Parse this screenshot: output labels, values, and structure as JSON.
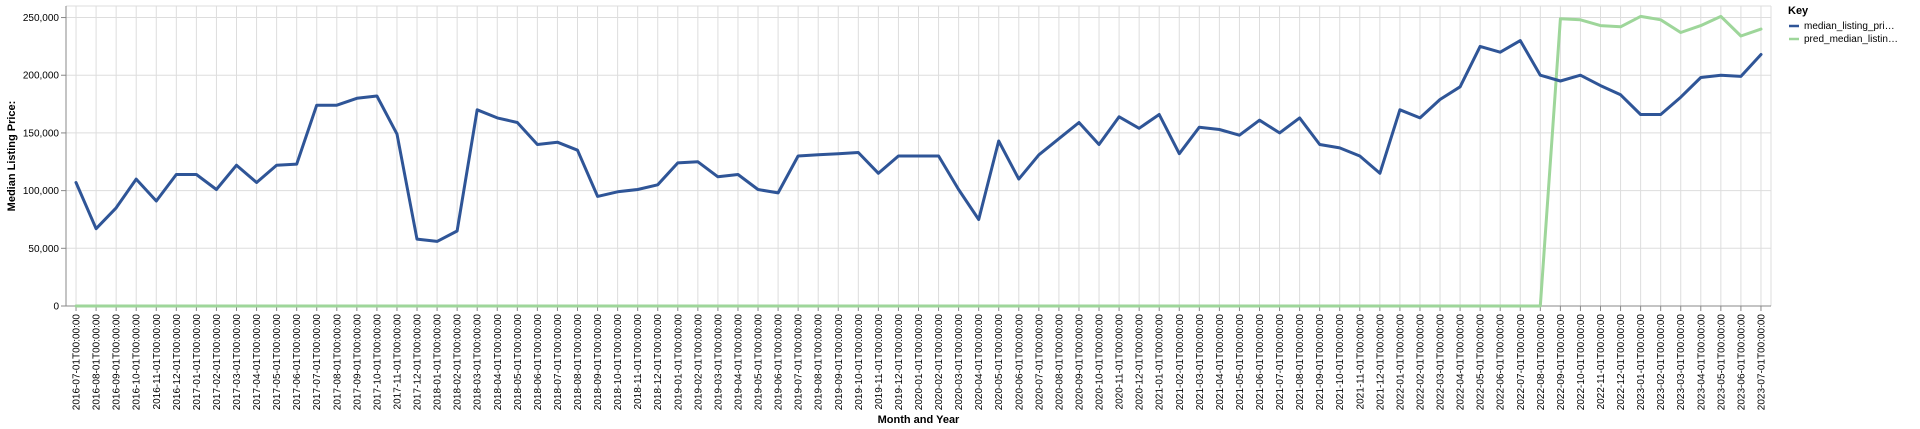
{
  "chart_data": {
    "type": "line",
    "xlabel": "Month and Year",
    "ylabel": "Median Listing Price:",
    "ylim": [
      0,
      260000
    ],
    "yticks": [
      0,
      50000,
      100000,
      150000,
      200000,
      250000
    ],
    "ytick_labels": [
      "0",
      "50,000",
      "100,000",
      "150,000",
      "200,000",
      "250,000"
    ],
    "grid": true,
    "legend": {
      "title": "Key",
      "placement": "top-right"
    },
    "x": [
      "2016-07-01T00:00:00",
      "2016-08-01T00:00:00",
      "2016-09-01T00:00:00",
      "2016-10-01T00:00:00",
      "2016-11-01T00:00:00",
      "2016-12-01T00:00:00",
      "2017-01-01T00:00:00",
      "2017-02-01T00:00:00",
      "2017-03-01T00:00:00",
      "2017-04-01T00:00:00",
      "2017-05-01T00:00:00",
      "2017-06-01T00:00:00",
      "2017-07-01T00:00:00",
      "2017-08-01T00:00:00",
      "2017-09-01T00:00:00",
      "2017-10-01T00:00:00",
      "2017-11-01T00:00:00",
      "2017-12-01T00:00:00",
      "2018-01-01T00:00:00",
      "2018-02-01T00:00:00",
      "2018-03-01T00:00:00",
      "2018-04-01T00:00:00",
      "2018-05-01T00:00:00",
      "2018-06-01T00:00:00",
      "2018-07-01T00:00:00",
      "2018-08-01T00:00:00",
      "2018-09-01T00:00:00",
      "2018-10-01T00:00:00",
      "2018-11-01T00:00:00",
      "2018-12-01T00:00:00",
      "2019-01-01T00:00:00",
      "2019-02-01T00:00:00",
      "2019-03-01T00:00:00",
      "2019-04-01T00:00:00",
      "2019-05-01T00:00:00",
      "2019-06-01T00:00:00",
      "2019-07-01T00:00:00",
      "2019-08-01T00:00:00",
      "2019-09-01T00:00:00",
      "2019-10-01T00:00:00",
      "2019-11-01T00:00:00",
      "2019-12-01T00:00:00",
      "2020-01-01T00:00:00",
      "2020-02-01T00:00:00",
      "2020-03-01T00:00:00",
      "2020-04-01T00:00:00",
      "2020-05-01T00:00:00",
      "2020-06-01T00:00:00",
      "2020-07-01T00:00:00",
      "2020-08-01T00:00:00",
      "2020-09-01T00:00:00",
      "2020-10-01T00:00:00",
      "2020-11-01T00:00:00",
      "2020-12-01T00:00:00",
      "2021-01-01T00:00:00",
      "2021-02-01T00:00:00",
      "2021-03-01T00:00:00",
      "2021-04-01T00:00:00",
      "2021-05-01T00:00:00",
      "2021-06-01T00:00:00",
      "2021-07-01T00:00:00",
      "2021-08-01T00:00:00",
      "2021-09-01T00:00:00",
      "2021-10-01T00:00:00",
      "2021-11-01T00:00:00",
      "2021-12-01T00:00:00",
      "2022-01-01T00:00:00",
      "2022-02-01T00:00:00",
      "2022-03-01T00:00:00",
      "2022-04-01T00:00:00",
      "2022-05-01T00:00:00",
      "2022-06-01T00:00:00",
      "2022-07-01T00:00:00",
      "2022-08-01T00:00:00",
      "2022-09-01T00:00:00",
      "2022-10-01T00:00:00",
      "2022-11-01T00:00:00",
      "2022-12-01T00:00:00",
      "2023-01-01T00:00:00",
      "2023-02-01T00:00:00",
      "2023-03-01T00:00:00",
      "2023-04-01T00:00:00",
      "2023-05-01T00:00:00",
      "2023-06-01T00:00:00",
      "2023-07-01T00:00:00"
    ],
    "series": [
      {
        "name": "median_listing_pri…",
        "color": "#2f5597",
        "values": [
          107000,
          67000,
          85000,
          110000,
          91000,
          114000,
          114000,
          101000,
          122000,
          107000,
          122000,
          123000,
          174000,
          174000,
          180000,
          182000,
          149000,
          58000,
          56000,
          65000,
          170000,
          163000,
          159000,
          140000,
          142000,
          135000,
          95000,
          99000,
          101000,
          105000,
          124000,
          125000,
          112000,
          114000,
          101000,
          98000,
          130000,
          131000,
          132000,
          133000,
          115000,
          130000,
          130000,
          130000,
          101000,
          75000,
          143000,
          110000,
          131000,
          145000,
          159000,
          140000,
          164000,
          154000,
          166000,
          132000,
          155000,
          153000,
          148000,
          161000,
          150000,
          163000,
          140000,
          137000,
          130000,
          115000,
          170000,
          163000,
          179000,
          190000,
          225000,
          220000,
          230000,
          200000,
          195000,
          200000,
          191000,
          183000,
          166000,
          166000,
          181000,
          198000,
          200000,
          199000,
          218000
        ]
      },
      {
        "name": "pred_median_listin…",
        "color": "#9ed69a",
        "values": [
          0,
          0,
          0,
          0,
          0,
          0,
          0,
          0,
          0,
          0,
          0,
          0,
          0,
          0,
          0,
          0,
          0,
          0,
          0,
          0,
          0,
          0,
          0,
          0,
          0,
          0,
          0,
          0,
          0,
          0,
          0,
          0,
          0,
          0,
          0,
          0,
          0,
          0,
          0,
          0,
          0,
          0,
          0,
          0,
          0,
          0,
          0,
          0,
          0,
          0,
          0,
          0,
          0,
          0,
          0,
          0,
          0,
          0,
          0,
          0,
          0,
          0,
          0,
          0,
          0,
          0,
          0,
          0,
          0,
          0,
          0,
          0,
          0,
          0,
          249000,
          248000,
          243000,
          242000,
          251000,
          248000,
          237000,
          243000,
          251000,
          234000,
          240000
        ]
      }
    ]
  }
}
